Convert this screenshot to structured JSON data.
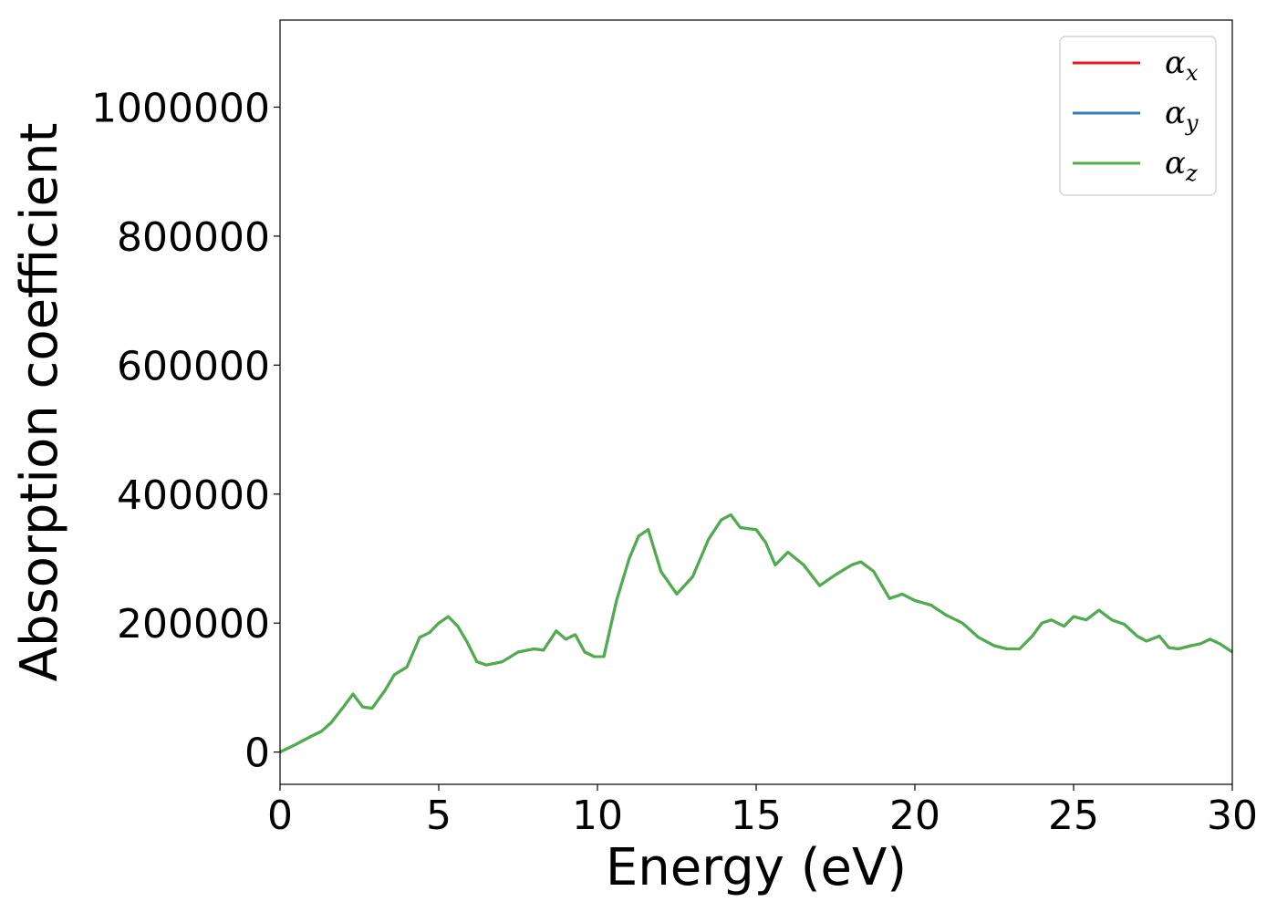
{
  "chart_data": {
    "type": "line",
    "xlabel": "Energy (eV)",
    "ylabel": "Absorption coefficient",
    "xlim": [
      0,
      30
    ],
    "ylim": [
      -50000,
      1135000
    ],
    "xticks": [
      0,
      5,
      10,
      15,
      20,
      25,
      30
    ],
    "yticks": [
      0,
      200000,
      400000,
      600000,
      800000,
      1000000
    ],
    "grid": false,
    "legend_position": "top-right",
    "series": [
      {
        "name": "α",
        "subscript": "x",
        "color": "#e41a1c",
        "ref": "shared"
      },
      {
        "name": "α",
        "subscript": "y",
        "color": "#377eb8",
        "ref": "shared"
      },
      {
        "name": "α",
        "subscript": "z",
        "color": "#4daf4a",
        "ref": "shared"
      }
    ],
    "shared_x": [
      0,
      0.5,
      1.0,
      1.3,
      1.6,
      2.0,
      2.3,
      2.6,
      2.9,
      3.3,
      3.6,
      4.0,
      4.4,
      4.7,
      5.0,
      5.3,
      5.6,
      5.9,
      6.2,
      6.5,
      7.0,
      7.5,
      8.0,
      8.3,
      8.7,
      9.0,
      9.3,
      9.6,
      9.9,
      10.2,
      10.6,
      11.0,
      11.3,
      11.6,
      12.0,
      12.5,
      13.0,
      13.5,
      13.9,
      14.2,
      14.5,
      15.0,
      15.3,
      15.6,
      16.0,
      16.5,
      17.0,
      17.5,
      18.0,
      18.3,
      18.7,
      19.2,
      19.6,
      20.0,
      20.5,
      21.0,
      21.5,
      22.0,
      22.5,
      22.9,
      23.3,
      23.7,
      24.0,
      24.3,
      24.7,
      25.0,
      25.4,
      25.8,
      26.2,
      26.6,
      27.0,
      27.3,
      27.7,
      28.0,
      28.3,
      28.7,
      29.0,
      29.3,
      29.6,
      30.0
    ],
    "shared_y": [
      0,
      12000,
      25000,
      32000,
      45000,
      70000,
      90000,
      70000,
      68000,
      95000,
      120000,
      132000,
      178000,
      185000,
      200000,
      210000,
      195000,
      170000,
      140000,
      135000,
      140000,
      155000,
      160000,
      158000,
      188000,
      175000,
      182000,
      155000,
      148000,
      148000,
      235000,
      300000,
      335000,
      345000,
      280000,
      245000,
      272000,
      330000,
      360000,
      368000,
      348000,
      345000,
      325000,
      290000,
      310000,
      290000,
      258000,
      275000,
      290000,
      295000,
      280000,
      238000,
      245000,
      235000,
      228000,
      212000,
      200000,
      178000,
      165000,
      160000,
      160000,
      180000,
      200000,
      205000,
      195000,
      210000,
      205000,
      220000,
      205000,
      198000,
      180000,
      172000,
      180000,
      162000,
      160000,
      165000,
      168000,
      175000,
      168000,
      155000
    ]
  }
}
